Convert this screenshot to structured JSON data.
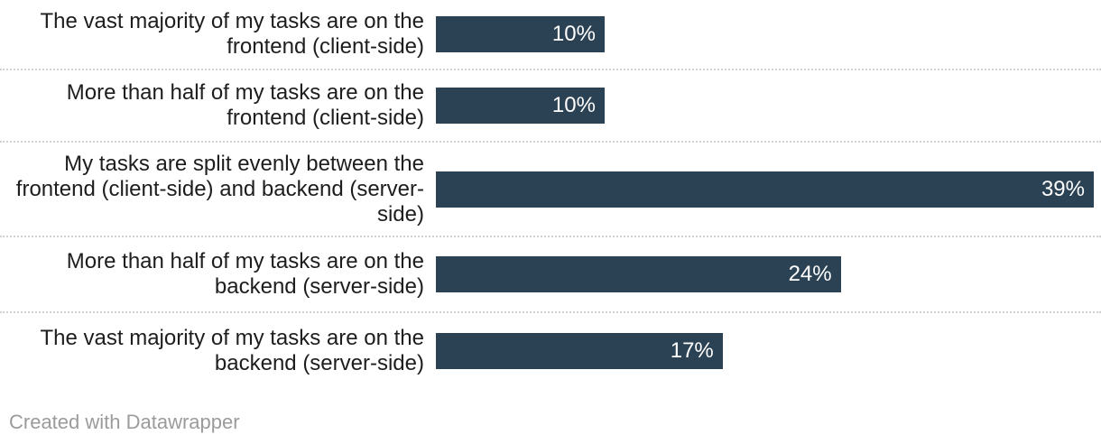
{
  "chart_data": {
    "type": "bar",
    "orientation": "horizontal",
    "title": "",
    "xlabel": "",
    "ylabel": "",
    "categories": [
      "The vast majority of my tasks are on the frontend (client-side)",
      "More than half of my tasks are on the frontend (client-side)",
      "My tasks are split evenly between the frontend (client-side) and backend (server-side)",
      "More than half of my tasks are on the backend (server-side)",
      "The vast majority of my tasks are on the backend (server-side)"
    ],
    "values": [
      10,
      10,
      39,
      24,
      17
    ],
    "value_labels": [
      "10%",
      "10%",
      "39%",
      "24%",
      "17%"
    ],
    "xlim": [
      0,
      39
    ],
    "grid": "off",
    "legend": "none",
    "value_labels_position": "inside-end",
    "bar_color": "#2b4254",
    "value_label_color": "#ffffff",
    "category_label_color": "#1d1d1d",
    "separator_color": "#d2d2d2",
    "separator_style": "dotted"
  },
  "footer": {
    "credit": "Created with Datawrapper",
    "color": "#9b9b9b"
  }
}
